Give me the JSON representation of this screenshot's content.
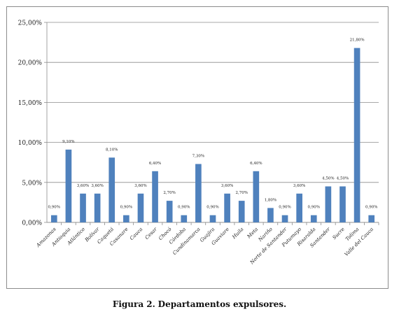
{
  "figure": {
    "caption_prefix": "Figura 2.",
    "caption_text": "Departamentos expulsores."
  },
  "chart_data": {
    "type": "bar",
    "title": "",
    "xlabel": "",
    "ylabel": "",
    "ylim": [
      0,
      25
    ],
    "yticks": [
      "0,00%",
      "5,00%",
      "10,00%",
      "15,00%",
      "20,00%",
      "25,00%"
    ],
    "grid": "horizontal",
    "legend": "none",
    "bar_color": "#4f81bd",
    "categories": [
      "Amazonas",
      "Antioquia",
      "Atlántico",
      "Bolívar",
      "Caquetá",
      "Casanare",
      "Cauca",
      "Cesar",
      "Chocó",
      "Córdoba",
      "Cundinamarca",
      "Guajira",
      "Guaviare",
      "Huila",
      "Meta",
      "Nariño",
      "Norte de Santander",
      "Putumayo",
      "Risaralda",
      "Santander",
      "Sucre",
      "Tolima",
      "Valle del Cauca"
    ],
    "series": [
      {
        "values": [
          0.9,
          9.1,
          3.6,
          3.6,
          8.1,
          0.9,
          3.6,
          6.4,
          2.7,
          0.9,
          7.3,
          0.9,
          3.6,
          2.7,
          6.4,
          1.8,
          0.9,
          3.6,
          0.9,
          4.5,
          4.5,
          21.8,
          0.9
        ],
        "labels": [
          "0,90%",
          "9,10%",
          "3,60%",
          "3,60%",
          "8,10%",
          "0,90%",
          "3,60%",
          "6,40%",
          "2,70%",
          "0,90%",
          "7,30%",
          "0,90%",
          "3,60%",
          "2,70%",
          "6,40%",
          "1,80%",
          "0,90%",
          "3,60%",
          "0,90%",
          "4,50%",
          "4,50%",
          "21,80%",
          "0,90%"
        ]
      }
    ]
  }
}
